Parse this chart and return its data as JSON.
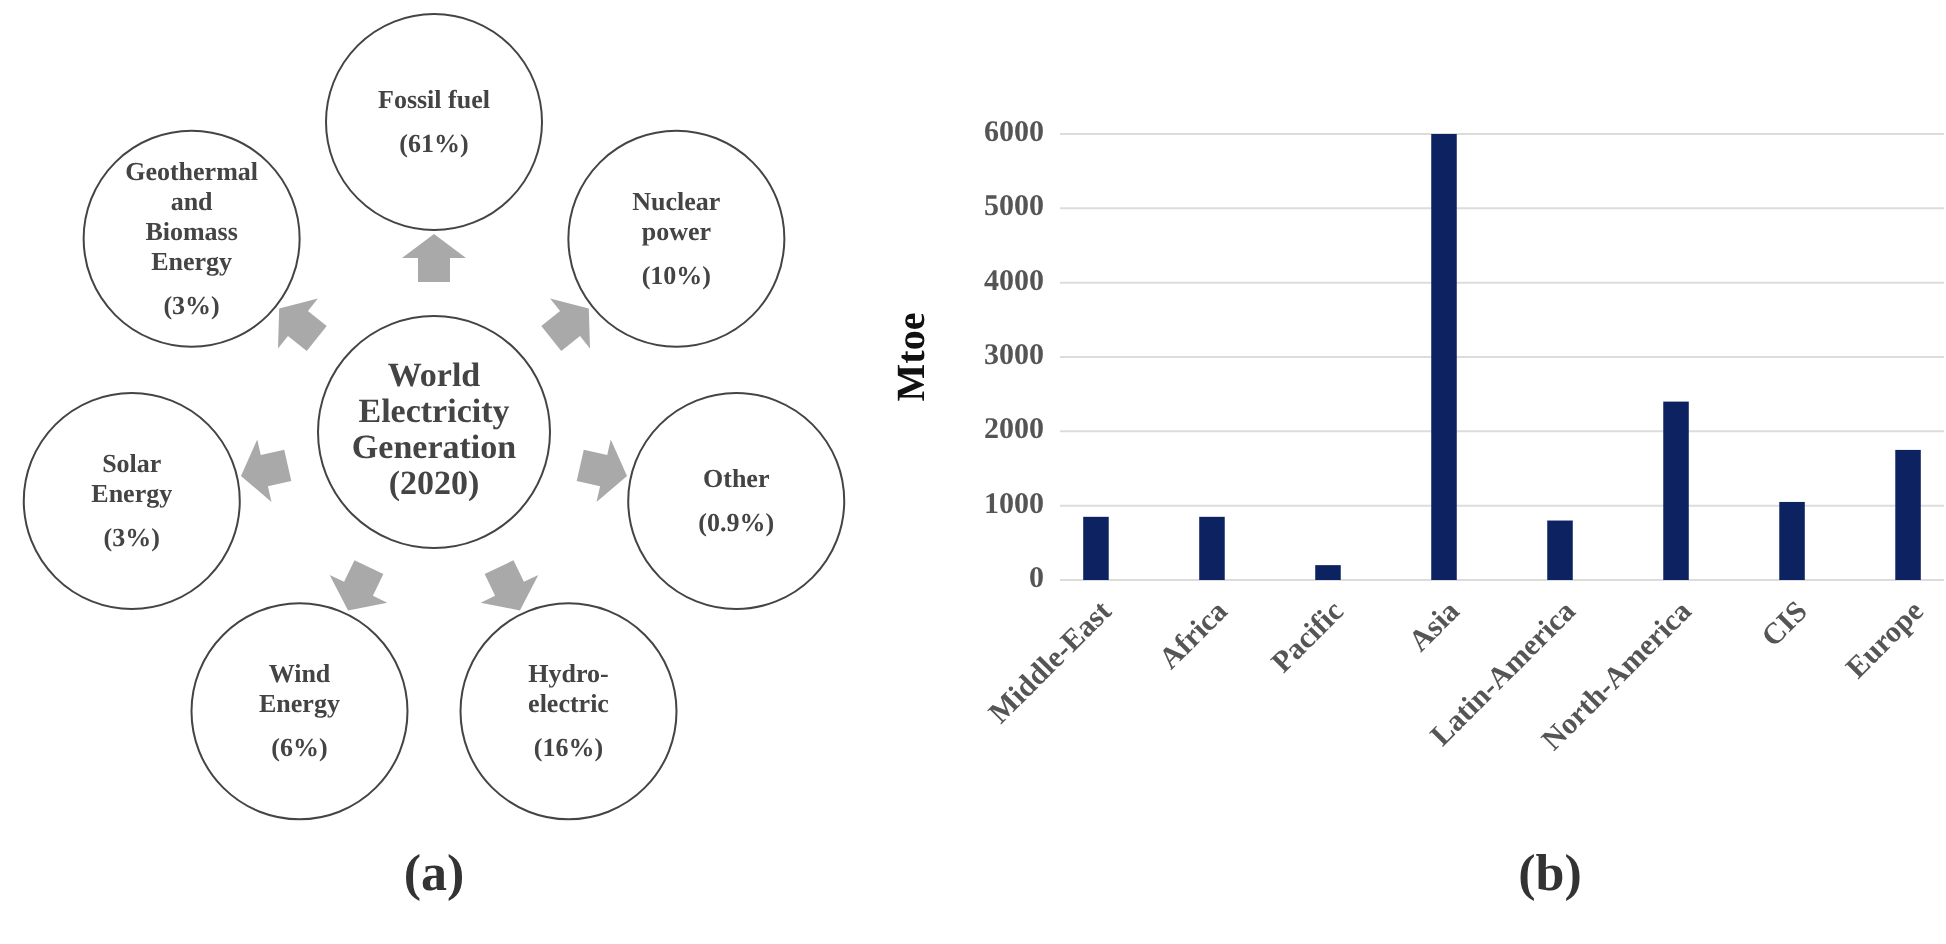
{
  "chart_data": [
    {
      "type": "other",
      "title": "World\nElectricity\nGeneration\n(2020)",
      "categories": [
        "Fossil fuel",
        "Nuclear\npower",
        "Other",
        "Hydro-\nelectric",
        "Wind\nEnergy",
        "Solar\nEnergy",
        "Geothermal\nand\nBiomass\nEnergy"
      ],
      "values": [
        61,
        10,
        0.9,
        16,
        6,
        3,
        3
      ],
      "value_labels": [
        "(61%)",
        "(10%)",
        "(0.9%)",
        "(16%)",
        "(6%)",
        "(3%)",
        "(3%)"
      ],
      "annotations": [
        "(a)"
      ]
    },
    {
      "type": "bar",
      "ylabel": "Mtoe",
      "categories": [
        "Middle-East",
        "Africa",
        "Pacific",
        "Asia",
        "Latin-America",
        "North-America",
        "CIS",
        "Europe"
      ],
      "values": [
        850,
        850,
        200,
        6000,
        800,
        2400,
        1050,
        1750
      ],
      "color": "#0d2260",
      "ylim": [
        0,
        6000
      ],
      "yticks": [
        0,
        1000,
        2000,
        3000,
        4000,
        5000,
        6000
      ],
      "grid": "y",
      "annotations": [
        "(b)"
      ]
    }
  ]
}
